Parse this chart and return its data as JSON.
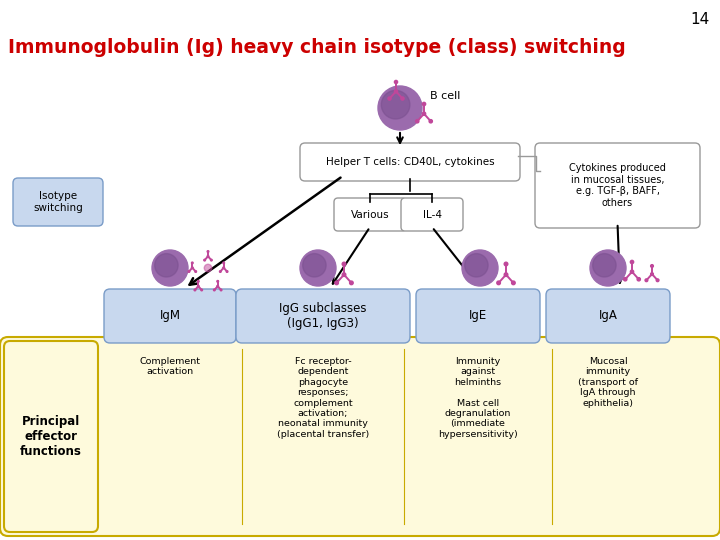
{
  "title": "Immunoglobulin (Ig) heavy chain isotype (class) switching",
  "slide_number": "14",
  "title_color": "#CC0000",
  "title_fontsize": 13.5,
  "bg_color": "#FFFFFF",
  "box_blue_color": "#C8D8EE",
  "box_blue_edge": "#7A9CC8",
  "box_yellow_color": "#FEFADC",
  "box_yellow_border": "#C8AA00",
  "cell_color": "#9B6BAD",
  "cell_shadow": "#7A4F8F",
  "antibody_color": "#C0479A",
  "helper_text": "Helper T cells: CD40L, cytokines",
  "various_text": "Various",
  "il4_text": "IL-4",
  "cytokines_text": "Cytokines produced\nin mucosal tissues,\ne.g. TGF-β, BAFF,\nothers",
  "isotype_switching_text": "Isotype\nswitching",
  "bcell_text": "B cell",
  "principal_text": "Principal\neffector\nfunctions",
  "isotype_labels": [
    "IgM",
    "IgG subclasses\n(IgG1, IgG3)",
    "IgE",
    "IgA"
  ],
  "effector_functions": [
    "Complement\nactivation",
    "Fc receptor-\ndependent\nphagocyte\nresponses;\ncomplement\nactivation;\nneonatal immunity\n(placental transfer)",
    "Immunity\nagainst\nhelminths\n\nMast cell\ndegranulation\n(immediate\nhypersensitivity)",
    "Mucosal\nimmunity\n(transport of\nIgA through\nephithelia)"
  ]
}
